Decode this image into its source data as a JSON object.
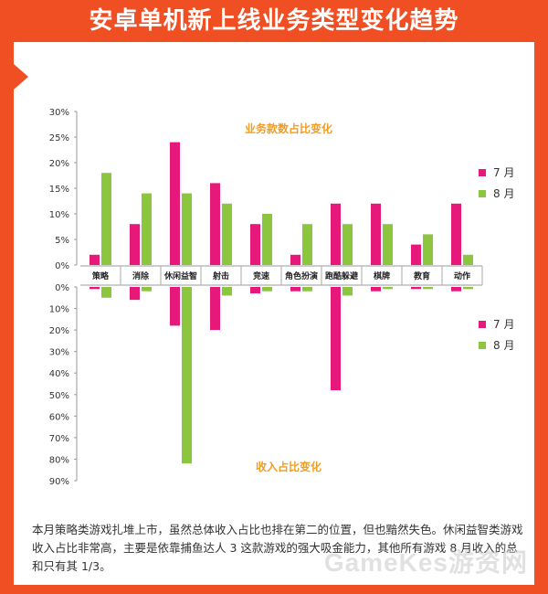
{
  "page": {
    "title": "安卓单机新上线业务类型变化趋势",
    "caption": "本月策略类游戏扎堆上市，虽然总体收入占比也排在第二的位置，但也黯然失色。休闲益智类游戏收入占比非常高，主要是依靠捕鱼达人 3 这款游戏的强大吸金能力，其他所有游戏 8 月收入的总和只有其 1/3。",
    "watermark": "GameKes游资网"
  },
  "colors": {
    "july": "#e6197a",
    "august": "#8cc63f",
    "accent": "#f04e23",
    "chart_title": "#f39c1f"
  },
  "chart_data": [
    {
      "type": "bar",
      "title": "业务款数占比变化",
      "categories": [
        "策略",
        "消除",
        "休闲益智",
        "射击",
        "竞速",
        "角色扮演",
        "跑酷躲避",
        "棋牌",
        "教育",
        "动作"
      ],
      "series": [
        {
          "name": "7 月",
          "values": [
            2,
            8,
            24,
            16,
            8,
            2,
            12,
            12,
            4,
            12
          ]
        },
        {
          "name": "8 月",
          "values": [
            18,
            14,
            14,
            12,
            10,
            8,
            8,
            8,
            6,
            2
          ]
        }
      ],
      "yticks": [
        "30%",
        "25%",
        "20%",
        "15%",
        "10%",
        "5%",
        "0%"
      ],
      "ylim": [
        0,
        30
      ],
      "legend": "right"
    },
    {
      "type": "bar",
      "title": "收入占比变化",
      "categories": [
        "策略",
        "消除",
        "休闲益智",
        "射击",
        "竞速",
        "角色扮演",
        "跑酷躲避",
        "棋牌",
        "教育",
        "动作"
      ],
      "series": [
        {
          "name": "7 月",
          "values": [
            1,
            6,
            18,
            20,
            3,
            2,
            48,
            2,
            1,
            2
          ]
        },
        {
          "name": "8 月",
          "values": [
            5,
            2,
            82,
            4,
            2,
            2,
            4,
            1,
            1,
            1
          ]
        }
      ],
      "yticks": [
        "0%",
        "10%",
        "20%",
        "30%",
        "40%",
        "50%",
        "60%",
        "70%",
        "80%",
        "90%"
      ],
      "ylim": [
        0,
        90
      ],
      "direction": "down",
      "legend": "right"
    }
  ]
}
